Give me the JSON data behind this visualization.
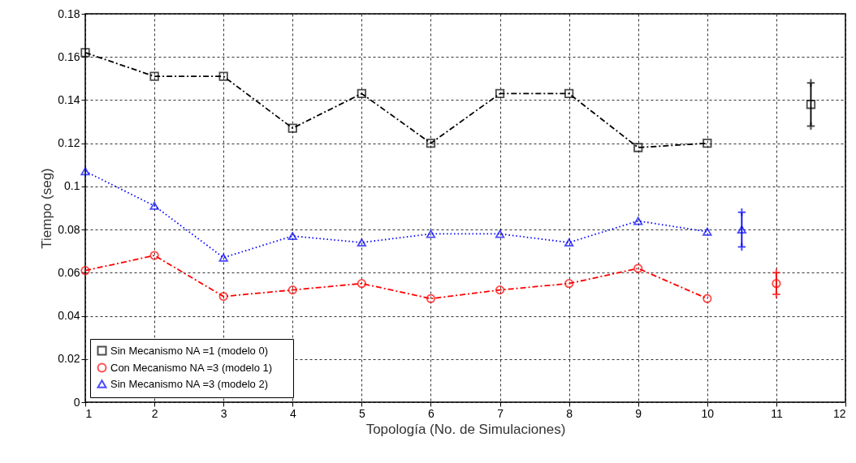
{
  "chart_data": {
    "type": "line",
    "xlabel": "Topología (No. de Simulaciones)",
    "ylabel": "Tiempo (seg)",
    "xlim": [
      1,
      12
    ],
    "xticks": [
      1,
      2,
      3,
      4,
      5,
      6,
      7,
      8,
      9,
      10,
      11,
      12
    ],
    "ylim": [
      0,
      0.18
    ],
    "yticks": [
      0,
      0.02,
      0.04,
      0.06,
      0.08,
      0.1,
      0.12,
      0.14,
      0.16,
      0.18
    ],
    "grid": true,
    "legend": "bottom left",
    "x": [
      1,
      2,
      3,
      4,
      5,
      6,
      7,
      8,
      9,
      10
    ],
    "series": [
      {
        "name": "Sin Mecanismo  NA =1   (modelo 0)",
        "color": "#000000",
        "marker": "square",
        "line_style": "dashed",
        "values": [
          0.162,
          0.151,
          0.151,
          0.127,
          0.143,
          0.12,
          0.143,
          0.143,
          0.118,
          0.12
        ]
      },
      {
        "name": "Con Mecanismo  NA =3   (modelo 1)",
        "color": "#ff0000",
        "marker": "circle",
        "line_style": "dashed",
        "values": [
          0.061,
          0.068,
          0.049,
          0.052,
          0.055,
          0.048,
          0.052,
          0.055,
          0.062,
          0.048
        ]
      },
      {
        "name": "Sin Mecanismo     NA =3   (modelo 2)",
        "color": "#0000ff",
        "marker": "triangle",
        "line_style": "dotted",
        "values": [
          0.107,
          0.091,
          0.067,
          0.077,
          0.074,
          0.078,
          0.078,
          0.074,
          0.084,
          0.079
        ]
      },
      {
        "type": "scatter",
        "color": "#000000",
        "marker": "square",
        "x": [
          11.5
        ],
        "values": [
          0.138
        ],
        "errors": [
          [
            0.128,
            0.148
          ]
        ]
      },
      {
        "type": "scatter",
        "color": "#ff0000",
        "marker": "circle",
        "x": [
          11
        ],
        "values": [
          0.055
        ],
        "errors": [
          [
            0.05,
            0.06
          ]
        ]
      },
      {
        "type": "scatter",
        "color": "#0000ff",
        "marker": "triangle",
        "x": [
          10.5
        ],
        "values": [
          0.08
        ],
        "errors": [
          [
            0.072,
            0.088
          ]
        ]
      }
    ]
  }
}
